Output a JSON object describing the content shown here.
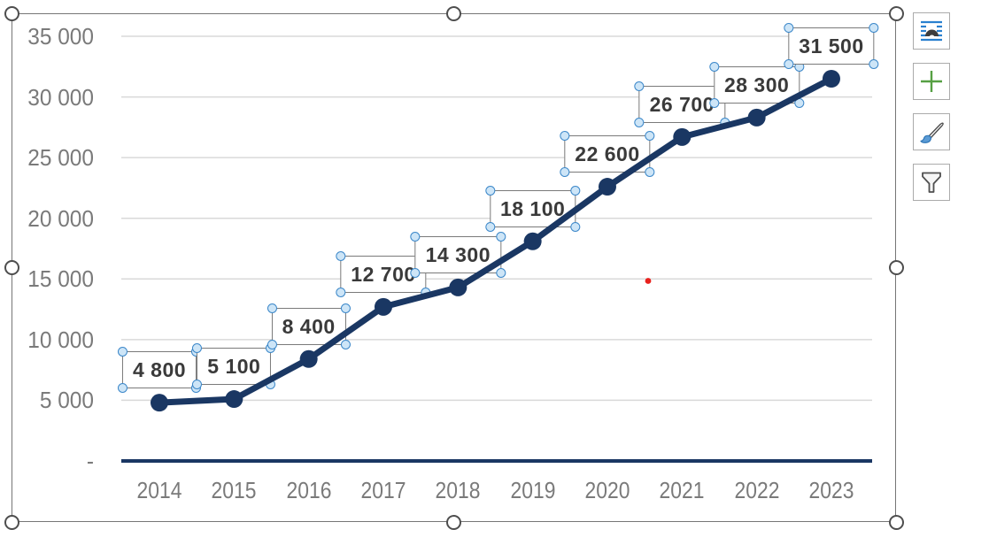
{
  "chart_data": {
    "type": "line",
    "title": "",
    "xlabel": "",
    "ylabel": "",
    "categories": [
      "2014",
      "2015",
      "2016",
      "2017",
      "2018",
      "2019",
      "2020",
      "2021",
      "2022",
      "2023"
    ],
    "series": [
      {
        "values": [
          4800,
          5100,
          8400,
          12700,
          14300,
          18100,
          22600,
          26700,
          28300,
          31500
        ],
        "data_labels": [
          "4 800",
          "5 100",
          "8 400",
          "12 700",
          "14 300",
          "18 100",
          "22 600",
          "26 700",
          "28 300",
          "31 500"
        ]
      }
    ],
    "ylim": [
      0,
      35000
    ],
    "grid": true,
    "legend": "none",
    "y_ticks": [
      {
        "value": 35000,
        "label": "35 000"
      },
      {
        "value": 30000,
        "label": "30 000"
      },
      {
        "value": 25000,
        "label": "25 000"
      },
      {
        "value": 20000,
        "label": "20 000"
      },
      {
        "value": 15000,
        "label": "15 000"
      },
      {
        "value": 10000,
        "label": "10 000"
      },
      {
        "value": 5000,
        "label": "5 000"
      },
      {
        "value": 0,
        "label": "-"
      }
    ]
  },
  "colors": {
    "line": "#1a3763",
    "marker": "#1a3763",
    "axis_line": "#1a3763",
    "gridline": "#d9d9d9",
    "axis_text": "#7a7a7a",
    "data_label_text": "#3a3a3a",
    "data_label_border": "#7a7a7a",
    "label_handle_fill": "#cde5f7",
    "label_handle_stroke": "#3b87c9",
    "frame_handle_stroke": "#4e4e4e",
    "red_dot": "#e8211d",
    "button_icon_blue": "#2980cf",
    "button_icon_green": "#56a043",
    "button_icon_dark": "#3d3d3d",
    "brush_fill": "#5b9bd5"
  },
  "chart_buttons": [
    {
      "icon": "layout-options-icon"
    },
    {
      "icon": "chart-elements-plus-icon"
    },
    {
      "icon": "chart-styles-brush-icon"
    },
    {
      "icon": "chart-filters-funnel-icon"
    }
  ]
}
